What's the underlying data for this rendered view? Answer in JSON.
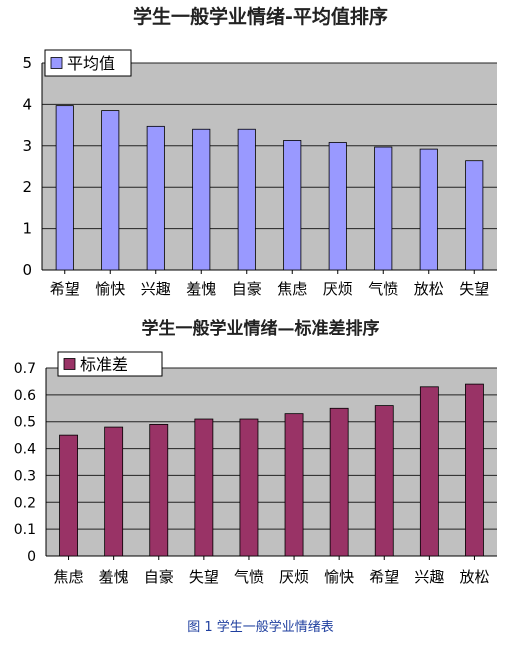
{
  "chart_data": [
    {
      "type": "bar",
      "title": "学生一般学业情绪-平均值排序",
      "legend": {
        "label": "平均值",
        "placement": "top-left"
      },
      "categories": [
        "希望",
        "愉快",
        "兴趣",
        "羞愧",
        "自豪",
        "焦虑",
        "厌烦",
        "气愤",
        "放松",
        "失望"
      ],
      "values": [
        3.97,
        3.85,
        3.47,
        3.4,
        3.4,
        3.13,
        3.08,
        2.97,
        2.92,
        2.64
      ],
      "ylim": [
        0,
        5
      ],
      "yticks": [
        "0",
        "1",
        "2",
        "3",
        "4",
        "5"
      ],
      "bar_color": "#9999ff",
      "plot_bg": "#c0c0c0",
      "grid": true
    },
    {
      "type": "bar",
      "title": "学生一般学业情绪—标准差排序",
      "legend": {
        "label": "标准差",
        "placement": "top-left"
      },
      "categories": [
        "焦虑",
        "羞愧",
        "自豪",
        "失望",
        "气愤",
        "厌烦",
        "愉快",
        "希望",
        "兴趣",
        "放松"
      ],
      "values": [
        0.45,
        0.48,
        0.49,
        0.51,
        0.51,
        0.53,
        0.55,
        0.56,
        0.63,
        0.64
      ],
      "ylim": [
        0,
        0.7
      ],
      "yticks": [
        "0",
        "0.1",
        "0.2",
        "0.3",
        "0.4",
        "0.5",
        "0.6",
        "0.7"
      ],
      "bar_color": "#993366",
      "plot_bg": "#c0c0c0",
      "grid": true
    }
  ],
  "caption": "图 1  学生一般学业情绪表"
}
